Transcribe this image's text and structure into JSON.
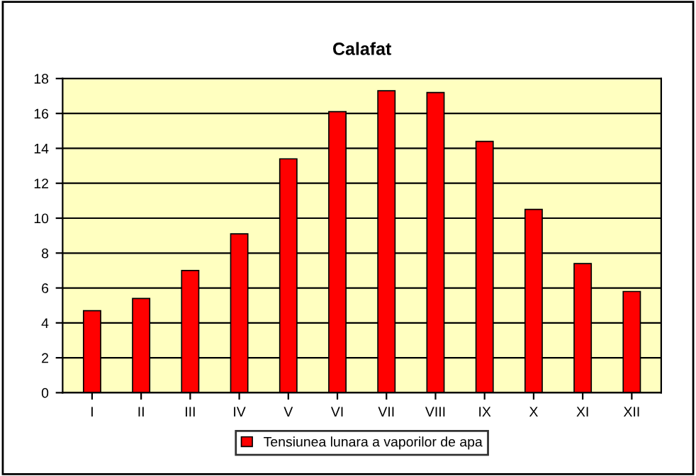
{
  "chart_data": {
    "type": "bar",
    "title": "Calafat",
    "categories": [
      "I",
      "II",
      "III",
      "IV",
      "V",
      "VI",
      "VII",
      "VIII",
      "IX",
      "X",
      "XI",
      "XII"
    ],
    "series": [
      {
        "name": "Tensiunea lunara a vaporilor de apa",
        "color": "#ff0000",
        "values": [
          4.7,
          5.4,
          7.0,
          9.1,
          13.4,
          16.1,
          17.3,
          17.2,
          14.4,
          10.5,
          7.4,
          5.8
        ]
      }
    ],
    "ylim": [
      0,
      18
    ],
    "yticks": [
      0,
      2,
      4,
      6,
      8,
      10,
      12,
      14,
      16,
      18
    ],
    "grid": "y",
    "legend": "bottom"
  }
}
